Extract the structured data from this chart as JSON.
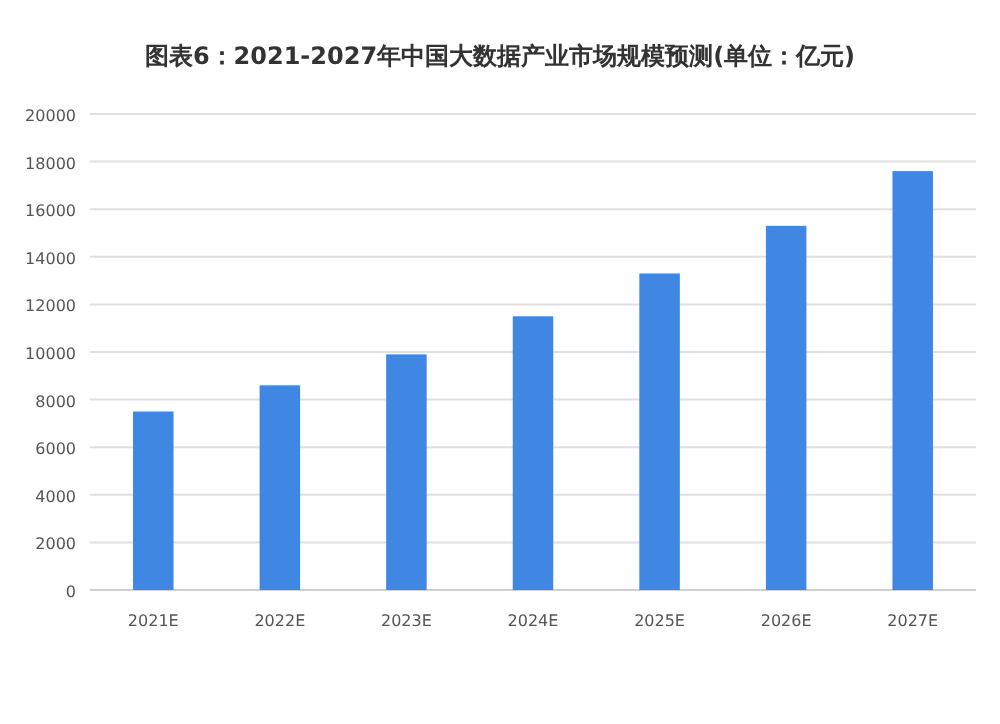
{
  "chart_data": {
    "type": "bar",
    "title": "图表6：2021-2027年中国大数据产业市场规模预测(单位：亿元)",
    "categories": [
      "2021E",
      "2022E",
      "2023E",
      "2024E",
      "2025E",
      "2026E",
      "2027E"
    ],
    "values": [
      7500,
      8600,
      9900,
      11500,
      13300,
      15300,
      17600
    ],
    "color": "#3f87e3",
    "ylim": [
      0,
      20000
    ],
    "yticks": [
      0,
      2000,
      4000,
      6000,
      8000,
      10000,
      12000,
      14000,
      16000,
      18000,
      20000
    ],
    "grid": "y"
  }
}
